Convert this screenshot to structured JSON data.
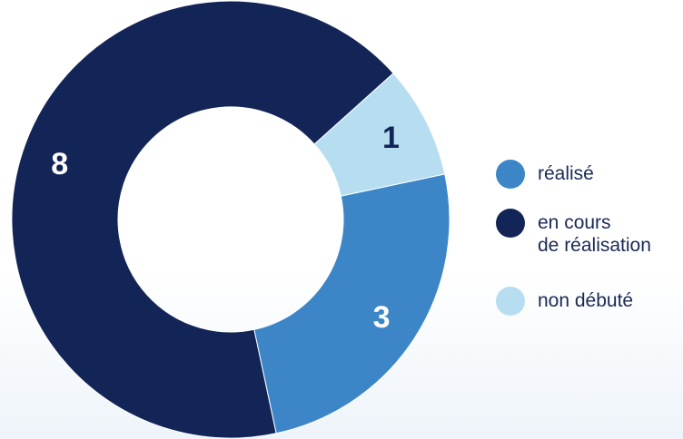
{
  "chart_data": {
    "type": "pie",
    "donut": true,
    "categories": [
      "réalisé",
      "en cours de réalisation",
      "non débuté"
    ],
    "values": [
      3,
      8,
      1
    ],
    "data_labels": [
      "3",
      "8",
      "1"
    ],
    "colors": [
      "#3c86c7",
      "#132557",
      "#b7def0"
    ],
    "label_colors": [
      "#ffffff",
      "#ffffff",
      "#132557"
    ],
    "legend_position": "right",
    "title": "",
    "xlabel": "",
    "ylabel": ""
  },
  "legend": {
    "items": [
      {
        "lines": [
          "réalisé"
        ],
        "color": "#3c86c7"
      },
      {
        "lines": [
          "en cours",
          "de réalisation"
        ],
        "color": "#132557"
      },
      {
        "lines": [
          "non débuté"
        ],
        "color": "#b7def0"
      }
    ]
  }
}
